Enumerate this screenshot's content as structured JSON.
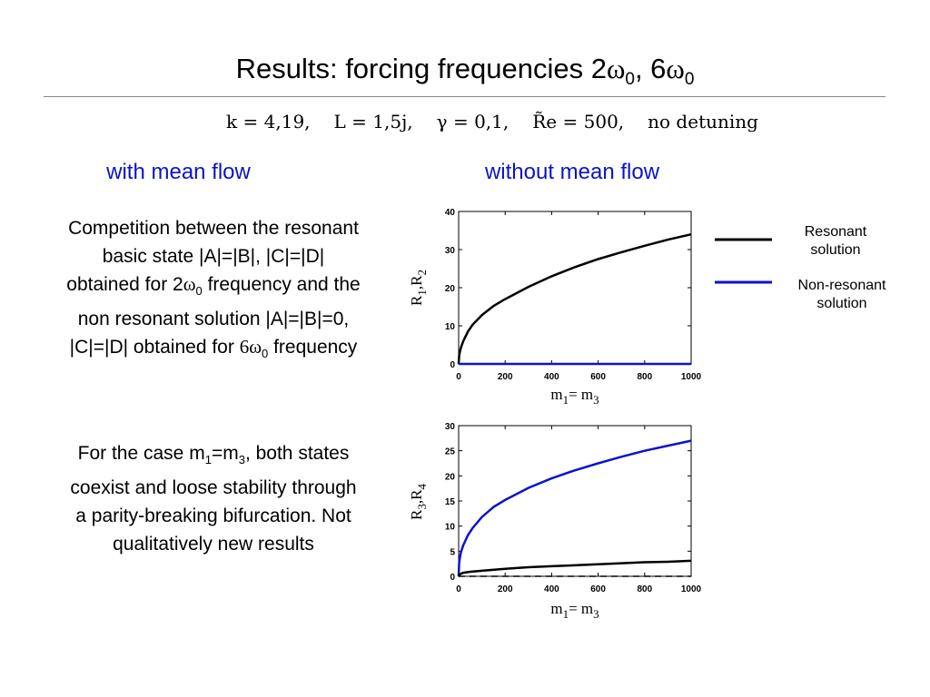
{
  "slide": {
    "title_text": "Results: forcing frequencies 2",
    "omega": "ω",
    "sub0": "0",
    "title_sep": ", 6",
    "params": {
      "k": "k = 4,19,",
      "L": "L = 1,5j,",
      "gamma": "γ = 0,1,",
      "re": "R̃e = 500,",
      "detune": "no detuning"
    },
    "left_heading": "with mean flow",
    "right_heading": "without mean flow",
    "para1": {
      "part1": "Competition between the resonant basic state |A|=|B|, |C|=|D| obtained for 2",
      "part2": " frequency and the non resonant solution |A|=|B|=0, |C|=|D| obtained for ",
      "part3_num": "6",
      "part4": " frequency"
    },
    "para2": {
      "part1": "For the case m",
      "sub1": "1",
      "part2": "=m",
      "sub3": "3",
      "part3": ", both states coexist and loose stability through a parity-breaking bifurcation. Not qualitatively new results"
    },
    "legend": {
      "resonant": "Resonant solution",
      "nonresonant": "Non-resonant solution"
    }
  },
  "chart_data": [
    {
      "type": "line",
      "ylabel_main": "R",
      "ylabel_sub1": "1",
      "ylabel_sep": ",R",
      "ylabel_sub2": "2",
      "xlabel_main1": "m",
      "xlabel_sub1": "1",
      "xlabel_mid": "= m",
      "xlabel_sub2": "3",
      "xlim": [
        0,
        1000
      ],
      "ylim": [
        0,
        40
      ],
      "xticks": [
        0,
        200,
        400,
        600,
        800,
        1000
      ],
      "yticks": [
        0,
        10,
        20,
        30,
        40
      ],
      "series": [
        {
          "color": "#000000",
          "style": "solid",
          "x": [
            0,
            2,
            5,
            10,
            20,
            40,
            60,
            100,
            150,
            200,
            300,
            400,
            500,
            600,
            700,
            800,
            900,
            1000
          ],
          "y": [
            0,
            2.0,
            3.1,
            4.3,
            6.0,
            8.5,
            10.3,
            12.8,
            15.2,
            17.0,
            20.2,
            23.0,
            25.4,
            27.5,
            29.3,
            31.0,
            32.6,
            34.0
          ]
        },
        {
          "color": "#0a14c8",
          "style": "solid",
          "x": [
            0,
            1000
          ],
          "y": [
            0,
            0
          ]
        }
      ]
    },
    {
      "type": "line",
      "ylabel_main": "R",
      "ylabel_sub1": "3",
      "ylabel_sep": ",R",
      "ylabel_sub2": "4",
      "xlabel_main1": "m",
      "xlabel_sub1": "1",
      "xlabel_mid": "= m",
      "xlabel_sub2": "3",
      "xlim": [
        0,
        1000
      ],
      "ylim": [
        0,
        30
      ],
      "xticks": [
        0,
        200,
        400,
        600,
        800,
        1000
      ],
      "yticks": [
        0,
        5,
        10,
        15,
        20,
        25,
        30
      ],
      "series": [
        {
          "color": "#0a14c8",
          "style": "solid",
          "x": [
            0,
            2,
            5,
            10,
            20,
            40,
            60,
            100,
            150,
            200,
            300,
            400,
            500,
            600,
            700,
            800,
            900,
            1000
          ],
          "y": [
            0,
            2.5,
            3.6,
            4.8,
            6.2,
            8.2,
            9.6,
            11.8,
            13.8,
            15.2,
            17.6,
            19.5,
            21.1,
            22.5,
            23.8,
            25.0,
            26.0,
            27.0
          ]
        },
        {
          "color": "#000000",
          "style": "solid",
          "x": [
            0,
            5,
            20,
            50,
            100,
            200,
            300,
            400,
            500,
            600,
            700,
            800,
            900,
            1000
          ],
          "y": [
            0,
            0.4,
            0.7,
            0.9,
            1.1,
            1.5,
            1.8,
            2.0,
            2.2,
            2.4,
            2.6,
            2.8,
            2.9,
            3.1
          ]
        },
        {
          "color": "#000000",
          "style": "dashed",
          "x": [
            0,
            1000
          ],
          "y": [
            0,
            0
          ]
        }
      ]
    }
  ]
}
